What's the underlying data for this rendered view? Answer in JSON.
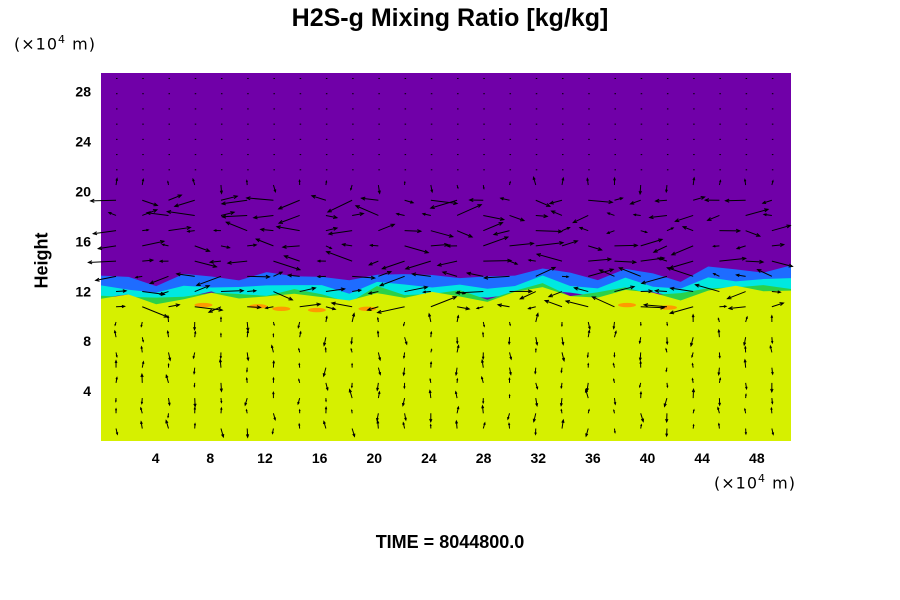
{
  "chart_data": {
    "type": "heatmap",
    "title": "H2S-g Mixing Ratio [kg/kg]",
    "ylabel": "Height",
    "y_unit": [
      "(×10",
      "4",
      " m)"
    ],
    "x_unit": [
      "(×10",
      "4",
      " m)"
    ],
    "x_ticks": [
      4,
      8,
      12,
      16,
      20,
      24,
      28,
      32,
      36,
      40,
      44,
      48
    ],
    "y_ticks": [
      4,
      8,
      12,
      16,
      20,
      24,
      28
    ],
    "xlim": [
      0,
      50.5
    ],
    "ylim": [
      0,
      29.5
    ],
    "grid": false,
    "layers": [
      {
        "name": "upper",
        "y_from": 13.5,
        "y_to": 29.5,
        "color": "#7000a8"
      },
      {
        "name": "transition-blue",
        "y_from": 12.3,
        "y_to": 13.6,
        "color": "#1e6cff"
      },
      {
        "name": "transition-cyan",
        "y_from": 12.0,
        "y_to": 12.8,
        "color": "#00e8e0"
      },
      {
        "name": "transition-green",
        "y_from": 11.2,
        "y_to": 12.2,
        "color": "#2ad14a"
      },
      {
        "name": "lower",
        "y_from": 0,
        "y_to": 11.4,
        "color": "#d6f000"
      }
    ],
    "interface_height": [
      13.0,
      13.2,
      12.6,
      13.1,
      13.4,
      12.9,
      13.3,
      13.5,
      13.0,
      12.8,
      13.6,
      13.1,
      13.4,
      13.2,
      12.9,
      13.5,
      13.8,
      13.3,
      13.2,
      13.6,
      13.4,
      13.0,
      13.7,
      13.9,
      13.6,
      13.8
    ],
    "vector_field": "velocity arrows overlaid"
  },
  "time_label": "TIME = 8044800.0"
}
